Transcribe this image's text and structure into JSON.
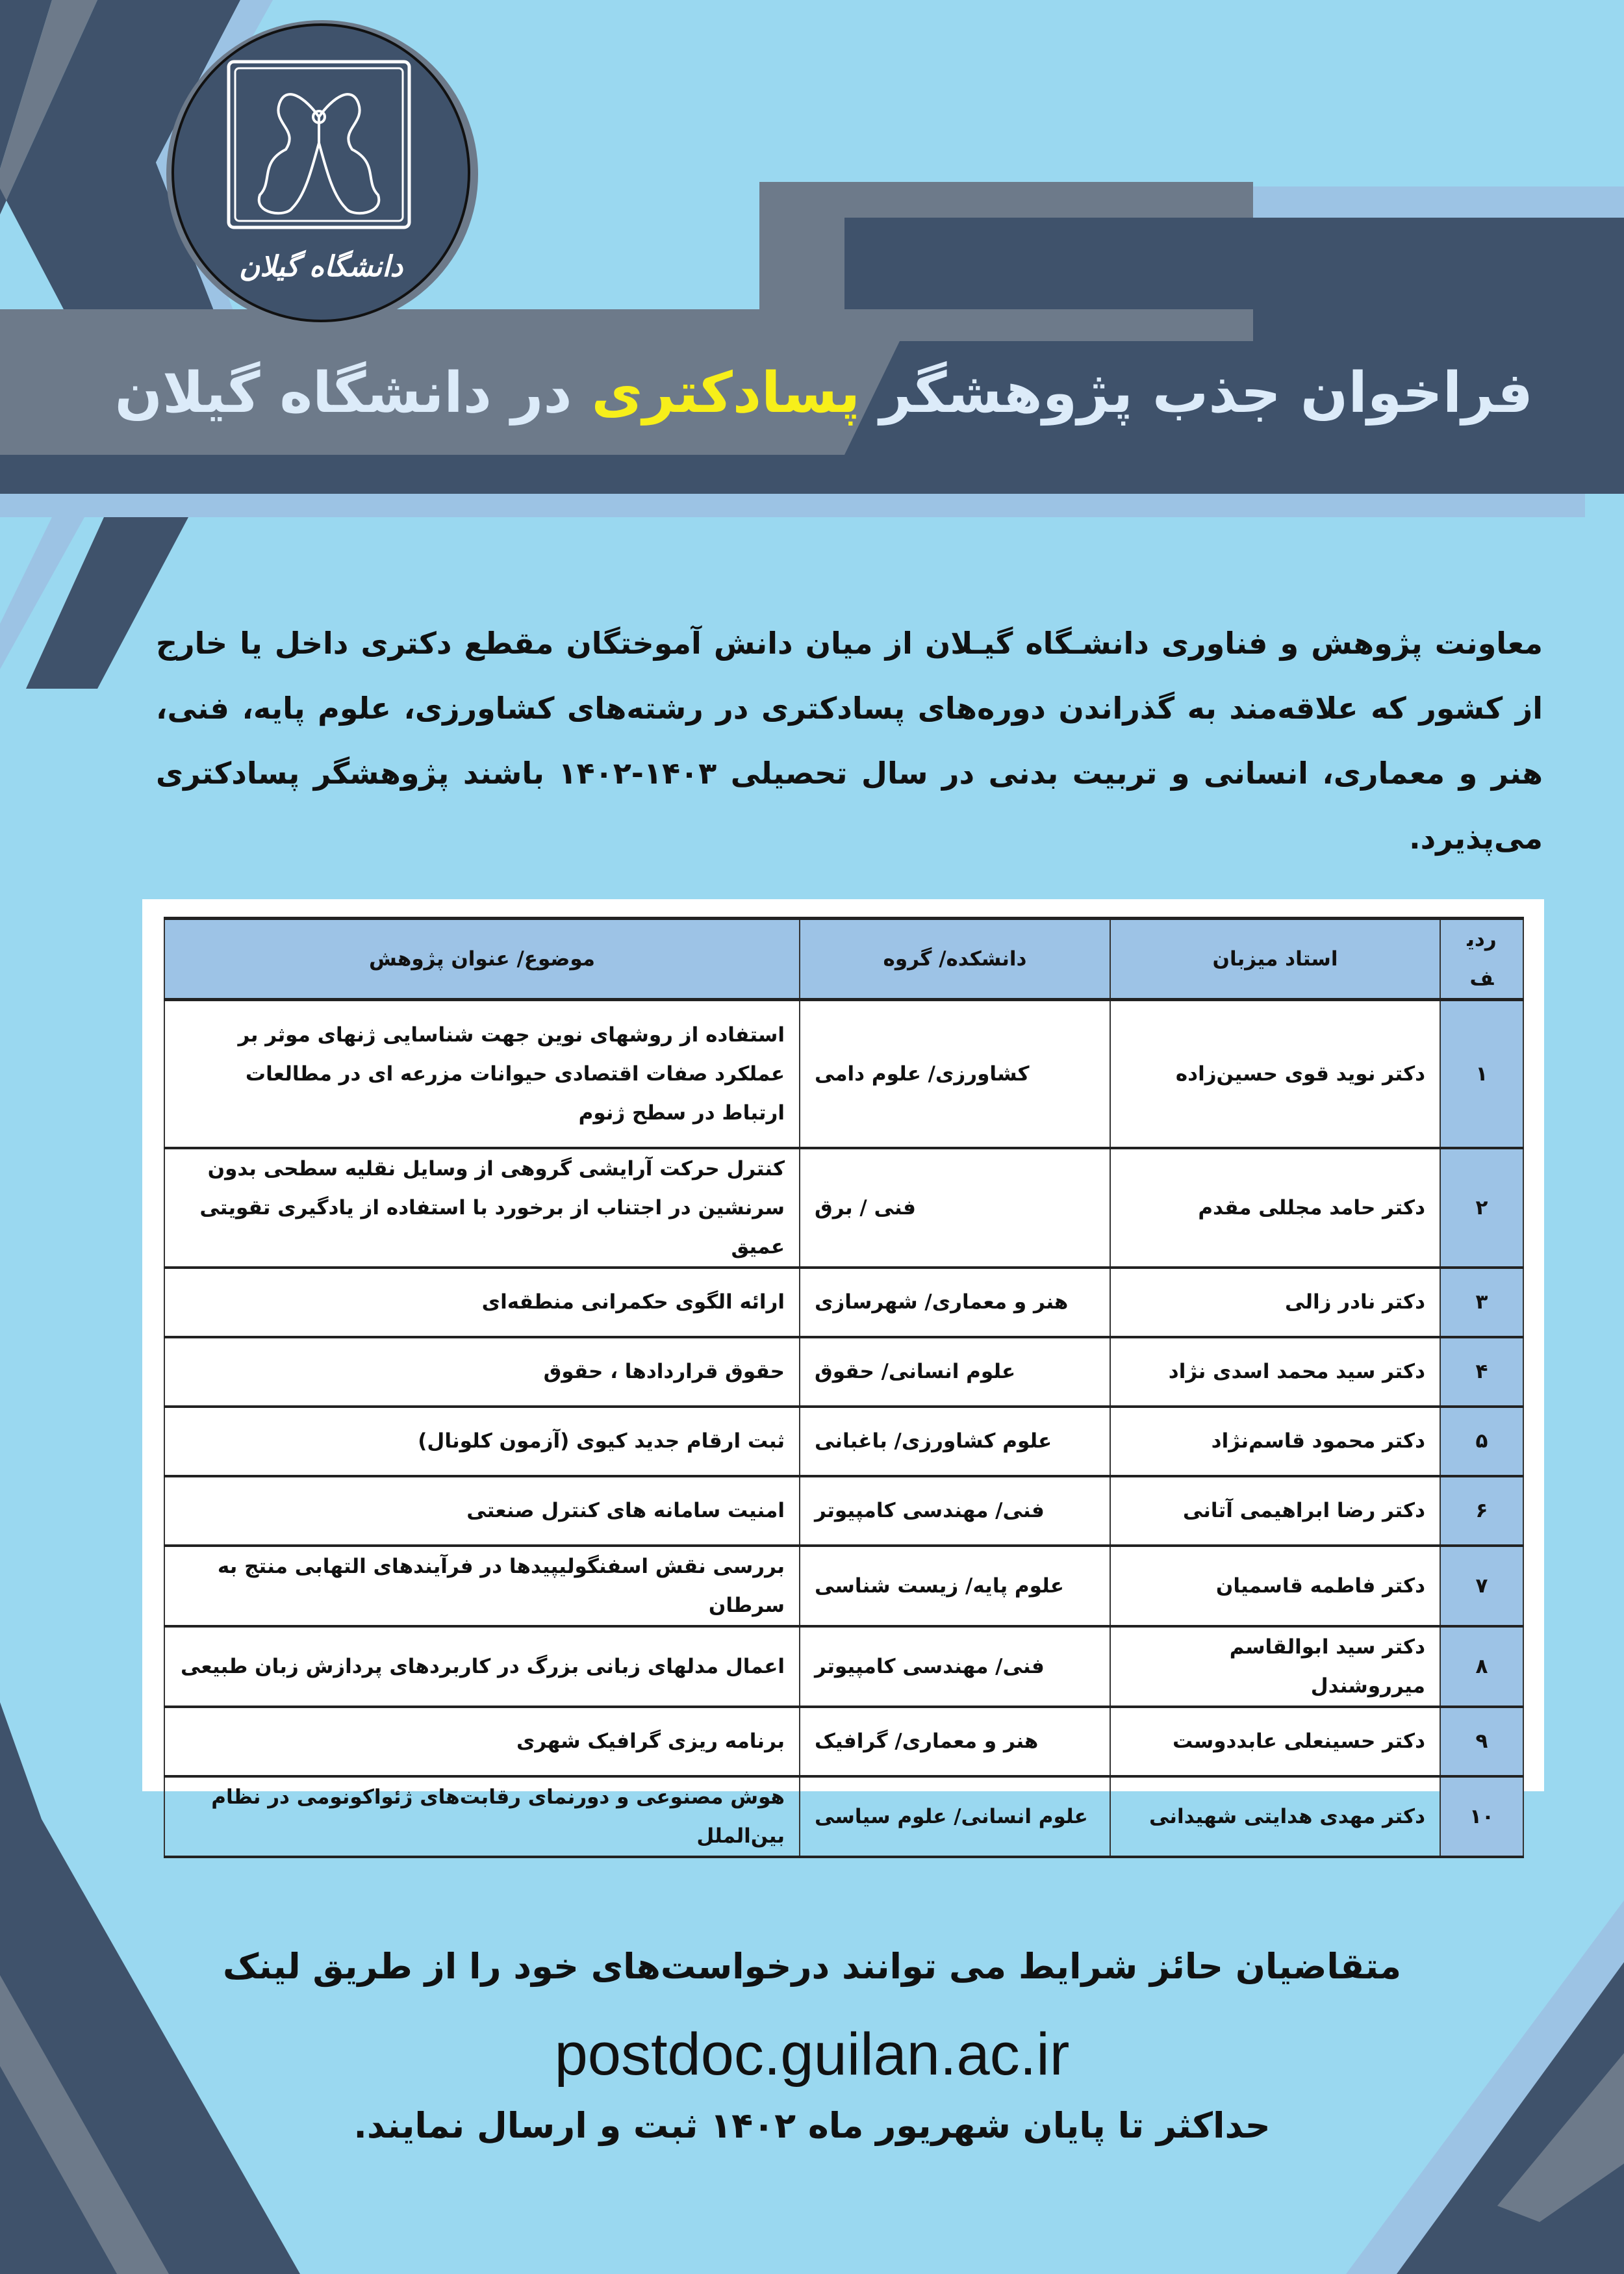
{
  "colors": {
    "background": "#9ad8f0",
    "dark": "#3f526b",
    "gray": "#6d7a8a",
    "light": "#9cc3e4",
    "highlight": "#f7ef1a",
    "table_header": "#9dc3e6"
  },
  "logo": {
    "text": "دانشگاه گیلان"
  },
  "title": {
    "part1": "فراخوان جذب پژوهشگر",
    "highlight": "پسادکتری",
    "part2": "در دانشگاه گیلان"
  },
  "intro": "معاونت پژوهش و فناوری دانشـگاه گیـلان از میان دانش آموختگان مقطع دکتری داخل یا خارج از کشور که علاقه‌مند به گذراندن دوره‌های پسادکتری در رشته‌های کشاورزی، علوم پایه، فنی، هنر و معماری، انسانی و تربیت بدنی در سال تحصیلی ۱۴۰۳-۱۴۰۲ باشند پژوهشگر پسادکتری می‌پذیرد.",
  "table": {
    "headers": [
      "ردیف",
      "استاد میزبان",
      "دانشکده/ گروه",
      "موضوع/ عنوان پژوهش"
    ],
    "rows": [
      {
        "n": "۱",
        "host": "دکتر نوید قوی حسین‌زاده",
        "faculty": "کشاورزی/ علوم دامی",
        "topic": "استفاده از روشهای نوین جهت شناسایی ژنهای موثر بر عملکرد صفات اقتصادی حیوانات مزرعه ای در مطالعات ارتباط در سطح ژنوم"
      },
      {
        "n": "۲",
        "host": "دکتر حامد مجللی مقدم",
        "faculty": "فنی / برق",
        "topic": "کنترل حرکت آرایشی گروهی از وسایل نقلیه سطحی بدون سرنشین در اجتناب از برخورد با استفاده از یادگیری تقویتی عمیق"
      },
      {
        "n": "۳",
        "host": "دکتر نادر زالی",
        "faculty": "هنر و معماری/ شهرسازی",
        "topic": "ارائه الگوی حکمرانی منطقه‌ای"
      },
      {
        "n": "۴",
        "host": "دکتر سید محمد اسدی نژاد",
        "faculty": "علوم انسانی/ حقوق",
        "topic": "حقوق قراردادها ، حقوق"
      },
      {
        "n": "۵",
        "host": "دکتر محمود قاسم‌نژاد",
        "faculty": "علوم کشاورزی/ باغبانی",
        "topic": "ثبت ارقام جدید کیوی (آزمون کلونال)"
      },
      {
        "n": "۶",
        "host": "دکتر رضا ابراهیمی آتانی",
        "faculty": "فنی/ مهندسی کامپیوتر",
        "topic": "امنیت سامانه های کنترل صنعتی"
      },
      {
        "n": "۷",
        "host": "دکتر فاطمه قاسمیان",
        "faculty": "علوم پایه/ زیست شناسی",
        "topic": "بررسی نقش اسفنگولیپیدها در فرآیندهای التهابی منتج به سرطان"
      },
      {
        "n": "۸",
        "host": "دکتر سید ابوالقاسم میرروشندل",
        "faculty": "فنی/ مهندسی کامپیوتر",
        "topic": "اعمال مدلهای زبانی بزرگ در کاربردهای پردازش زبان طبیعی"
      },
      {
        "n": "۹",
        "host": "دکتر حسینعلی عابددوست",
        "faculty": "هنر و معماری/ گرافیک",
        "topic": "برنامه ریزی گرافیک شهری"
      },
      {
        "n": "۱۰",
        "host": "دکتر مهدی هدایتی شهیدانی",
        "faculty": "علوم انسانی/ علوم سیاسی",
        "topic": "هوش مصنوعی و دورنمای رقابت‌های ژئواکونومی در نظام بین‌الملل"
      }
    ]
  },
  "footer": {
    "line1": "متقاضیان حائز شرایط می توانند درخواست‌های خود را از طریق لینک",
    "link": "postdoc.guilan.ac.ir",
    "line3": "حداکثر تا پایان شهریور ماه ۱۴۰۲ ثبت و ارسال نمایند."
  }
}
